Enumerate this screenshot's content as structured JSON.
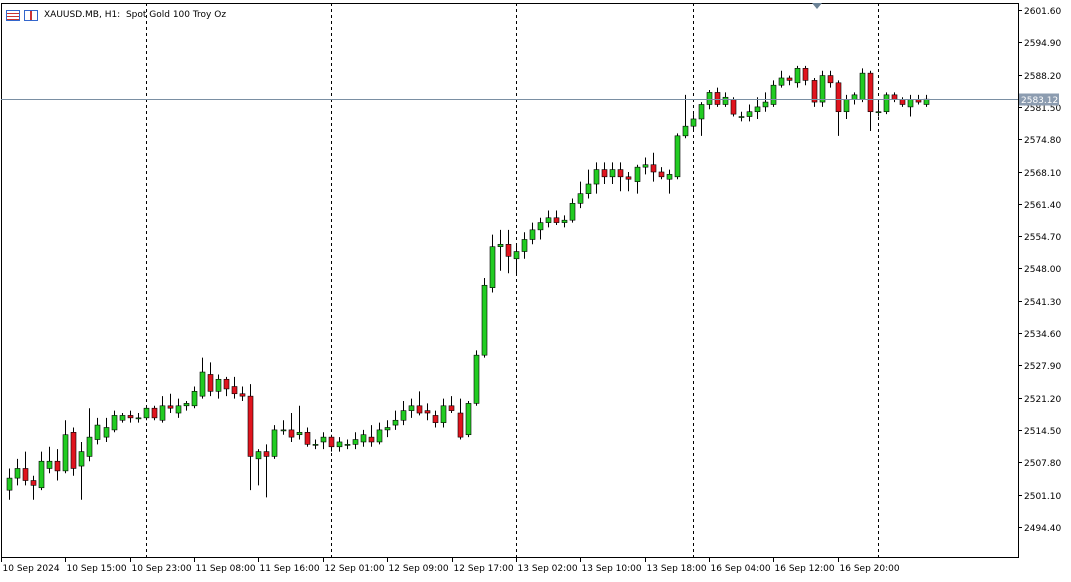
{
  "header": {
    "symbol": "XAUUSD.MB",
    "timeframe": "H1:",
    "description": "Spot Gold 100 Troy Oz"
  },
  "current_price": {
    "label": "2583.12",
    "value": 2583.12,
    "label_bg": "#8c9cb0"
  },
  "colors": {
    "bull": "#22cc22",
    "bear": "#e0141e",
    "wick": "#000000",
    "grid": "#000000",
    "price_line": "#7a8fa3",
    "axis": "#000000",
    "marker": "#6b8296"
  },
  "chart_data": {
    "type": "candlestick",
    "symbol": "XAUUSD.MB",
    "timeframe": "H1",
    "ylim": [
      2488.0,
      2603.0
    ],
    "y_ticks": [
      2601.6,
      2594.9,
      2588.2,
      2581.5,
      2574.8,
      2568.1,
      2561.4,
      2554.7,
      2548.0,
      2541.3,
      2534.6,
      2527.9,
      2521.2,
      2514.5,
      2507.8,
      2501.1,
      2494.4
    ],
    "y_tick_labels": [
      "2601.60",
      "2594.90",
      "2588.20",
      "2581.50",
      "2574.80",
      "2568.10",
      "2561.40",
      "2554.70",
      "2548.00",
      "2541.30",
      "2534.60",
      "2527.90",
      "2521.20",
      "2514.50",
      "2507.80",
      "2501.10",
      "2494.40"
    ],
    "x_labels": [
      {
        "bar": 0,
        "text": "10 Sep 2024"
      },
      {
        "bar": 8,
        "text": "10 Sep 15:00"
      },
      {
        "bar": 16,
        "text": "10 Sep 23:00"
      },
      {
        "bar": 24,
        "text": "11 Sep 08:00"
      },
      {
        "bar": 32,
        "text": "11 Sep 16:00"
      },
      {
        "bar": 40,
        "text": "12 Sep 01:00"
      },
      {
        "bar": 48,
        "text": "12 Sep 09:00"
      },
      {
        "bar": 56,
        "text": "12 Sep 17:00"
      },
      {
        "bar": 64,
        "text": "13 Sep 02:00"
      },
      {
        "bar": 72,
        "text": "13 Sep 10:00"
      },
      {
        "bar": 80,
        "text": "13 Sep 18:00"
      },
      {
        "bar": 88,
        "text": "16 Sep 04:00"
      },
      {
        "bar": 96,
        "text": "16 Sep 12:00"
      },
      {
        "bar": 104,
        "text": "16 Sep 20:00"
      }
    ],
    "day_separators": [
      17,
      40,
      63,
      85,
      108
    ],
    "candles": [
      {
        "o": 2502.0,
        "h": 2506.5,
        "l": 2500.0,
        "c": 2504.5
      },
      {
        "o": 2504.5,
        "h": 2508.5,
        "l": 2503.0,
        "c": 2506.5
      },
      {
        "o": 2506.5,
        "h": 2510.0,
        "l": 2503.0,
        "c": 2504.0
      },
      {
        "o": 2504.0,
        "h": 2505.0,
        "l": 2500.0,
        "c": 2503.0
      },
      {
        "o": 2502.5,
        "h": 2510.0,
        "l": 2502.0,
        "c": 2508.0
      },
      {
        "o": 2506.5,
        "h": 2511.0,
        "l": 2505.5,
        "c": 2508.0
      },
      {
        "o": 2508.0,
        "h": 2510.5,
        "l": 2504.0,
        "c": 2506.0
      },
      {
        "o": 2506.0,
        "h": 2516.5,
        "l": 2505.5,
        "c": 2513.5
      },
      {
        "o": 2514.0,
        "h": 2515.0,
        "l": 2505.0,
        "c": 2506.5
      },
      {
        "o": 2507.0,
        "h": 2512.0,
        "l": 2500.0,
        "c": 2510.0
      },
      {
        "o": 2509.0,
        "h": 2519.0,
        "l": 2508.0,
        "c": 2513.0
      },
      {
        "o": 2512.5,
        "h": 2517.0,
        "l": 2511.5,
        "c": 2515.5
      },
      {
        "o": 2513.0,
        "h": 2517.0,
        "l": 2512.0,
        "c": 2515.0
      },
      {
        "o": 2514.5,
        "h": 2518.5,
        "l": 2514.0,
        "c": 2517.5
      },
      {
        "o": 2516.5,
        "h": 2518.0,
        "l": 2516.0,
        "c": 2517.5
      },
      {
        "o": 2517.5,
        "h": 2518.5,
        "l": 2516.0,
        "c": 2517.0
      },
      {
        "o": 2517.0,
        "h": 2518.0,
        "l": 2516.0,
        "c": 2517.0
      },
      {
        "o": 2517.0,
        "h": 2519.5,
        "l": 2516.5,
        "c": 2519.0
      },
      {
        "o": 2519.0,
        "h": 2519.5,
        "l": 2516.5,
        "c": 2517.0
      },
      {
        "o": 2516.5,
        "h": 2521.5,
        "l": 2516.0,
        "c": 2519.5
      },
      {
        "o": 2519.5,
        "h": 2522.0,
        "l": 2518.0,
        "c": 2519.0
      },
      {
        "o": 2518.0,
        "h": 2521.0,
        "l": 2517.0,
        "c": 2519.5
      },
      {
        "o": 2519.5,
        "h": 2520.5,
        "l": 2518.5,
        "c": 2520.0
      },
      {
        "o": 2519.5,
        "h": 2523.5,
        "l": 2519.0,
        "c": 2522.5
      },
      {
        "o": 2521.5,
        "h": 2529.5,
        "l": 2521.0,
        "c": 2526.5
      },
      {
        "o": 2526.0,
        "h": 2528.5,
        "l": 2521.5,
        "c": 2522.5
      },
      {
        "o": 2522.5,
        "h": 2526.0,
        "l": 2521.0,
        "c": 2525.0
      },
      {
        "o": 2525.0,
        "h": 2525.5,
        "l": 2521.5,
        "c": 2523.0
      },
      {
        "o": 2523.5,
        "h": 2525.5,
        "l": 2521.0,
        "c": 2522.0
      },
      {
        "o": 2522.0,
        "h": 2523.5,
        "l": 2520.5,
        "c": 2521.5
      },
      {
        "o": 2521.5,
        "h": 2524.0,
        "l": 2502.0,
        "c": 2509.0
      },
      {
        "o": 2508.5,
        "h": 2510.5,
        "l": 2503.0,
        "c": 2510.0
      },
      {
        "o": 2510.0,
        "h": 2511.5,
        "l": 2500.5,
        "c": 2509.0
      },
      {
        "o": 2509.0,
        "h": 2515.5,
        "l": 2508.5,
        "c": 2514.5
      },
      {
        "o": 2514.5,
        "h": 2516.5,
        "l": 2513.5,
        "c": 2514.5
      },
      {
        "o": 2514.5,
        "h": 2518.0,
        "l": 2512.0,
        "c": 2513.0
      },
      {
        "o": 2513.5,
        "h": 2519.5,
        "l": 2512.5,
        "c": 2514.0
      },
      {
        "o": 2514.0,
        "h": 2515.0,
        "l": 2511.0,
        "c": 2511.5
      },
      {
        "o": 2511.5,
        "h": 2512.5,
        "l": 2510.5,
        "c": 2511.5
      },
      {
        "o": 2512.0,
        "h": 2514.0,
        "l": 2510.5,
        "c": 2513.0
      },
      {
        "o": 2513.0,
        "h": 2513.5,
        "l": 2510.0,
        "c": 2511.0
      },
      {
        "o": 2511.0,
        "h": 2513.0,
        "l": 2510.0,
        "c": 2512.0
      },
      {
        "o": 2511.5,
        "h": 2512.5,
        "l": 2510.5,
        "c": 2511.5
      },
      {
        "o": 2511.5,
        "h": 2514.0,
        "l": 2510.5,
        "c": 2512.5
      },
      {
        "o": 2512.0,
        "h": 2514.5,
        "l": 2511.0,
        "c": 2513.5
      },
      {
        "o": 2513.0,
        "h": 2515.5,
        "l": 2511.0,
        "c": 2512.0
      },
      {
        "o": 2512.0,
        "h": 2516.0,
        "l": 2511.5,
        "c": 2514.5
      },
      {
        "o": 2514.5,
        "h": 2516.5,
        "l": 2513.0,
        "c": 2515.0
      },
      {
        "o": 2515.5,
        "h": 2518.5,
        "l": 2514.5,
        "c": 2516.5
      },
      {
        "o": 2516.5,
        "h": 2520.5,
        "l": 2515.5,
        "c": 2518.5
      },
      {
        "o": 2518.5,
        "h": 2521.0,
        "l": 2517.0,
        "c": 2519.5
      },
      {
        "o": 2519.5,
        "h": 2522.5,
        "l": 2517.5,
        "c": 2518.0
      },
      {
        "o": 2518.5,
        "h": 2520.0,
        "l": 2516.5,
        "c": 2518.0
      },
      {
        "o": 2517.5,
        "h": 2518.5,
        "l": 2515.0,
        "c": 2516.0
      },
      {
        "o": 2516.0,
        "h": 2521.0,
        "l": 2515.0,
        "c": 2519.5
      },
      {
        "o": 2519.5,
        "h": 2521.5,
        "l": 2518.0,
        "c": 2518.5
      },
      {
        "o": 2518.0,
        "h": 2521.0,
        "l": 2512.5,
        "c": 2513.0
      },
      {
        "o": 2513.5,
        "h": 2520.5,
        "l": 2513.0,
        "c": 2520.0
      },
      {
        "o": 2520.0,
        "h": 2531.0,
        "l": 2519.5,
        "c": 2530.0
      },
      {
        "o": 2530.0,
        "h": 2546.0,
        "l": 2529.5,
        "c": 2544.5
      },
      {
        "o": 2544.0,
        "h": 2555.0,
        "l": 2543.0,
        "c": 2552.5
      },
      {
        "o": 2552.5,
        "h": 2556.0,
        "l": 2547.5,
        "c": 2553.0
      },
      {
        "o": 2553.0,
        "h": 2556.0,
        "l": 2547.0,
        "c": 2550.5
      },
      {
        "o": 2550.0,
        "h": 2553.0,
        "l": 2546.5,
        "c": 2551.5
      },
      {
        "o": 2551.5,
        "h": 2555.5,
        "l": 2550.0,
        "c": 2554.0
      },
      {
        "o": 2554.0,
        "h": 2557.5,
        "l": 2553.0,
        "c": 2556.0
      },
      {
        "o": 2556.0,
        "h": 2558.5,
        "l": 2554.0,
        "c": 2557.5
      },
      {
        "o": 2557.5,
        "h": 2560.0,
        "l": 2556.5,
        "c": 2558.5
      },
      {
        "o": 2558.5,
        "h": 2560.0,
        "l": 2557.0,
        "c": 2557.5
      },
      {
        "o": 2557.5,
        "h": 2559.0,
        "l": 2556.5,
        "c": 2558.0
      },
      {
        "o": 2558.0,
        "h": 2562.5,
        "l": 2557.5,
        "c": 2561.5
      },
      {
        "o": 2561.5,
        "h": 2566.0,
        "l": 2560.5,
        "c": 2563.5
      },
      {
        "o": 2563.5,
        "h": 2568.5,
        "l": 2562.5,
        "c": 2565.5
      },
      {
        "o": 2565.5,
        "h": 2570.0,
        "l": 2563.5,
        "c": 2568.5
      },
      {
        "o": 2568.5,
        "h": 2570.0,
        "l": 2565.5,
        "c": 2567.0
      },
      {
        "o": 2567.0,
        "h": 2570.0,
        "l": 2565.5,
        "c": 2568.5
      },
      {
        "o": 2568.5,
        "h": 2570.0,
        "l": 2564.0,
        "c": 2567.0
      },
      {
        "o": 2567.0,
        "h": 2568.0,
        "l": 2564.0,
        "c": 2566.5
      },
      {
        "o": 2566.0,
        "h": 2569.5,
        "l": 2563.5,
        "c": 2569.0
      },
      {
        "o": 2569.0,
        "h": 2571.0,
        "l": 2567.5,
        "c": 2569.5
      },
      {
        "o": 2569.5,
        "h": 2572.0,
        "l": 2566.0,
        "c": 2568.0
      },
      {
        "o": 2568.0,
        "h": 2569.0,
        "l": 2566.5,
        "c": 2567.0
      },
      {
        "o": 2566.5,
        "h": 2568.5,
        "l": 2563.5,
        "c": 2567.5
      },
      {
        "o": 2567.0,
        "h": 2576.0,
        "l": 2566.5,
        "c": 2575.5
      },
      {
        "o": 2575.5,
        "h": 2584.0,
        "l": 2575.0,
        "c": 2577.5
      },
      {
        "o": 2577.5,
        "h": 2580.0,
        "l": 2576.5,
        "c": 2579.0
      },
      {
        "o": 2579.0,
        "h": 2582.5,
        "l": 2575.5,
        "c": 2582.0
      },
      {
        "o": 2582.0,
        "h": 2585.0,
        "l": 2581.0,
        "c": 2584.5
      },
      {
        "o": 2584.5,
        "h": 2585.5,
        "l": 2581.5,
        "c": 2582.0
      },
      {
        "o": 2582.0,
        "h": 2584.5,
        "l": 2581.5,
        "c": 2583.5
      },
      {
        "o": 2583.0,
        "h": 2583.5,
        "l": 2579.5,
        "c": 2580.0
      },
      {
        "o": 2579.5,
        "h": 2580.5,
        "l": 2578.5,
        "c": 2579.5
      },
      {
        "o": 2579.5,
        "h": 2582.0,
        "l": 2578.5,
        "c": 2580.5
      },
      {
        "o": 2580.5,
        "h": 2583.5,
        "l": 2579.0,
        "c": 2581.5
      },
      {
        "o": 2581.5,
        "h": 2584.5,
        "l": 2580.5,
        "c": 2582.5
      },
      {
        "o": 2582.0,
        "h": 2587.0,
        "l": 2581.5,
        "c": 2586.0
      },
      {
        "o": 2586.0,
        "h": 2589.0,
        "l": 2585.5,
        "c": 2587.5
      },
      {
        "o": 2587.5,
        "h": 2588.0,
        "l": 2586.0,
        "c": 2587.0
      },
      {
        "o": 2586.5,
        "h": 2590.0,
        "l": 2585.5,
        "c": 2589.5
      },
      {
        "o": 2589.5,
        "h": 2590.0,
        "l": 2586.0,
        "c": 2587.0
      },
      {
        "o": 2587.0,
        "h": 2587.5,
        "l": 2581.5,
        "c": 2582.5
      },
      {
        "o": 2582.5,
        "h": 2589.0,
        "l": 2581.5,
        "c": 2588.0
      },
      {
        "o": 2588.0,
        "h": 2589.0,
        "l": 2585.5,
        "c": 2586.5
      },
      {
        "o": 2586.5,
        "h": 2587.0,
        "l": 2575.5,
        "c": 2580.5
      },
      {
        "o": 2580.5,
        "h": 2584.0,
        "l": 2579.0,
        "c": 2583.0
      },
      {
        "o": 2583.0,
        "h": 2584.5,
        "l": 2582.0,
        "c": 2584.0
      },
      {
        "o": 2583.0,
        "h": 2589.5,
        "l": 2582.5,
        "c": 2588.5
      },
      {
        "o": 2588.5,
        "h": 2589.0,
        "l": 2576.5,
        "c": 2580.5
      },
      {
        "o": 2580.5,
        "h": 2582.5,
        "l": 2579.5,
        "c": 2580.5
      },
      {
        "o": 2580.5,
        "h": 2584.5,
        "l": 2580.0,
        "c": 2584.0
      },
      {
        "o": 2584.0,
        "h": 2584.5,
        "l": 2582.5,
        "c": 2583.0
      },
      {
        "o": 2583.0,
        "h": 2583.5,
        "l": 2581.5,
        "c": 2582.0
      },
      {
        "o": 2581.5,
        "h": 2584.0,
        "l": 2579.5,
        "c": 2583.0
      },
      {
        "o": 2583.0,
        "h": 2584.0,
        "l": 2582.0,
        "c": 2582.5
      },
      {
        "o": 2582.0,
        "h": 2584.0,
        "l": 2581.5,
        "c": 2583.1
      }
    ]
  }
}
